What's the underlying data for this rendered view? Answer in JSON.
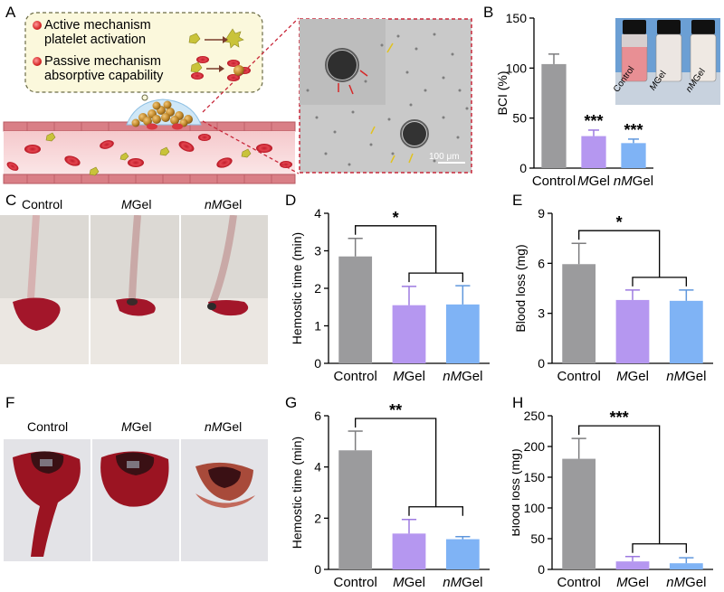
{
  "panel_letters": [
    "A",
    "B",
    "C",
    "D",
    "E",
    "F",
    "G",
    "H"
  ],
  "panel_a": {
    "callout_lines": [
      {
        "text": "Active mechanism",
        "bullet": true
      },
      {
        "text": "platelet activation",
        "bullet": false
      },
      {
        "text": "Passive mechanism",
        "bullet": true
      },
      {
        "text": "absorptive capability",
        "bullet": false
      }
    ],
    "scale_bar_label": "100 μm"
  },
  "panel_b_inset": {
    "vial_labels": [
      {
        "prefix": "",
        "italic": "",
        "suffix": "Control"
      },
      {
        "prefix": "",
        "italic": "M",
        "suffix": "Gel"
      },
      {
        "prefix": "",
        "italic": "nM",
        "suffix": "Gel"
      }
    ]
  },
  "photo_rows": {
    "c": [
      {
        "italic": "",
        "suffix": "Control"
      },
      {
        "italic": "M",
        "suffix": "Gel"
      },
      {
        "italic": "nM",
        "suffix": "Gel"
      }
    ],
    "f": [
      {
        "italic": "",
        "suffix": "Control"
      },
      {
        "italic": "M",
        "suffix": "Gel"
      },
      {
        "italic": "nM",
        "suffix": "Gel"
      }
    ]
  },
  "colors": {
    "control": "#9b9b9d",
    "mgel": "#b597f0",
    "nmgel": "#7fb3f5",
    "blood": "#a3162a"
  },
  "chart_data": [
    {
      "id": "B",
      "type": "bar",
      "categories": [
        {
          "italic": "",
          "suffix": "Control"
        },
        {
          "italic": "M",
          "suffix": "Gel"
        },
        {
          "italic": "nM",
          "suffix": "Gel"
        }
      ],
      "values": [
        104,
        32,
        25
      ],
      "errors": [
        10,
        6,
        4
      ],
      "ylabel": "BCI (%)",
      "ylim": [
        0,
        150
      ],
      "yticks": [
        0,
        50,
        100,
        150
      ],
      "significance": [
        {
          "category": 1,
          "label": "***"
        },
        {
          "category": 2,
          "label": "***"
        }
      ],
      "comparison": null
    },
    {
      "id": "D",
      "type": "bar",
      "categories": [
        {
          "italic": "",
          "suffix": "Control"
        },
        {
          "italic": "M",
          "suffix": "Gel"
        },
        {
          "italic": "nM",
          "suffix": "Gel"
        }
      ],
      "values": [
        2.85,
        1.55,
        1.57
      ],
      "errors": [
        0.48,
        0.5,
        0.5
      ],
      "ylabel": "Hemostic time (min)",
      "ylim": [
        0,
        4
      ],
      "yticks": [
        0,
        1,
        2,
        3,
        4
      ],
      "significance": [],
      "comparison": {
        "label": "*"
      }
    },
    {
      "id": "E",
      "type": "bar",
      "categories": [
        {
          "italic": "",
          "suffix": "Control"
        },
        {
          "italic": "M",
          "suffix": "Gel"
        },
        {
          "italic": "nM",
          "suffix": "Gel"
        }
      ],
      "values": [
        5.95,
        3.8,
        3.75
      ],
      "errors": [
        1.25,
        0.6,
        0.65
      ],
      "ylabel": "Blood loss (mg)",
      "ylim": [
        0,
        9
      ],
      "yticks": [
        0,
        3,
        6,
        9
      ],
      "significance": [],
      "comparison": {
        "label": "*"
      }
    },
    {
      "id": "G",
      "type": "bar",
      "categories": [
        {
          "italic": "",
          "suffix": "Control"
        },
        {
          "italic": "M",
          "suffix": "Gel"
        },
        {
          "italic": "nM",
          "suffix": "Gel"
        }
      ],
      "values": [
        4.65,
        1.4,
        1.18
      ],
      "errors": [
        0.75,
        0.55,
        0.1
      ],
      "ylabel": "Hemostic time (min)",
      "ylim": [
        0,
        6
      ],
      "yticks": [
        0,
        2,
        4,
        6
      ],
      "significance": [],
      "comparison": {
        "label": "**"
      }
    },
    {
      "id": "H",
      "type": "bar",
      "categories": [
        {
          "italic": "",
          "suffix": "Control"
        },
        {
          "italic": "M",
          "suffix": "Gel"
        },
        {
          "italic": "nM",
          "suffix": "Gel"
        }
      ],
      "values": [
        180,
        13,
        10
      ],
      "errors": [
        33,
        8,
        9
      ],
      "ylabel": "Blood loss (mg)",
      "ylim": [
        0,
        250
      ],
      "yticks": [
        0,
        50,
        100,
        150,
        200,
        250
      ],
      "significance": [],
      "comparison": {
        "label": "***"
      }
    }
  ]
}
